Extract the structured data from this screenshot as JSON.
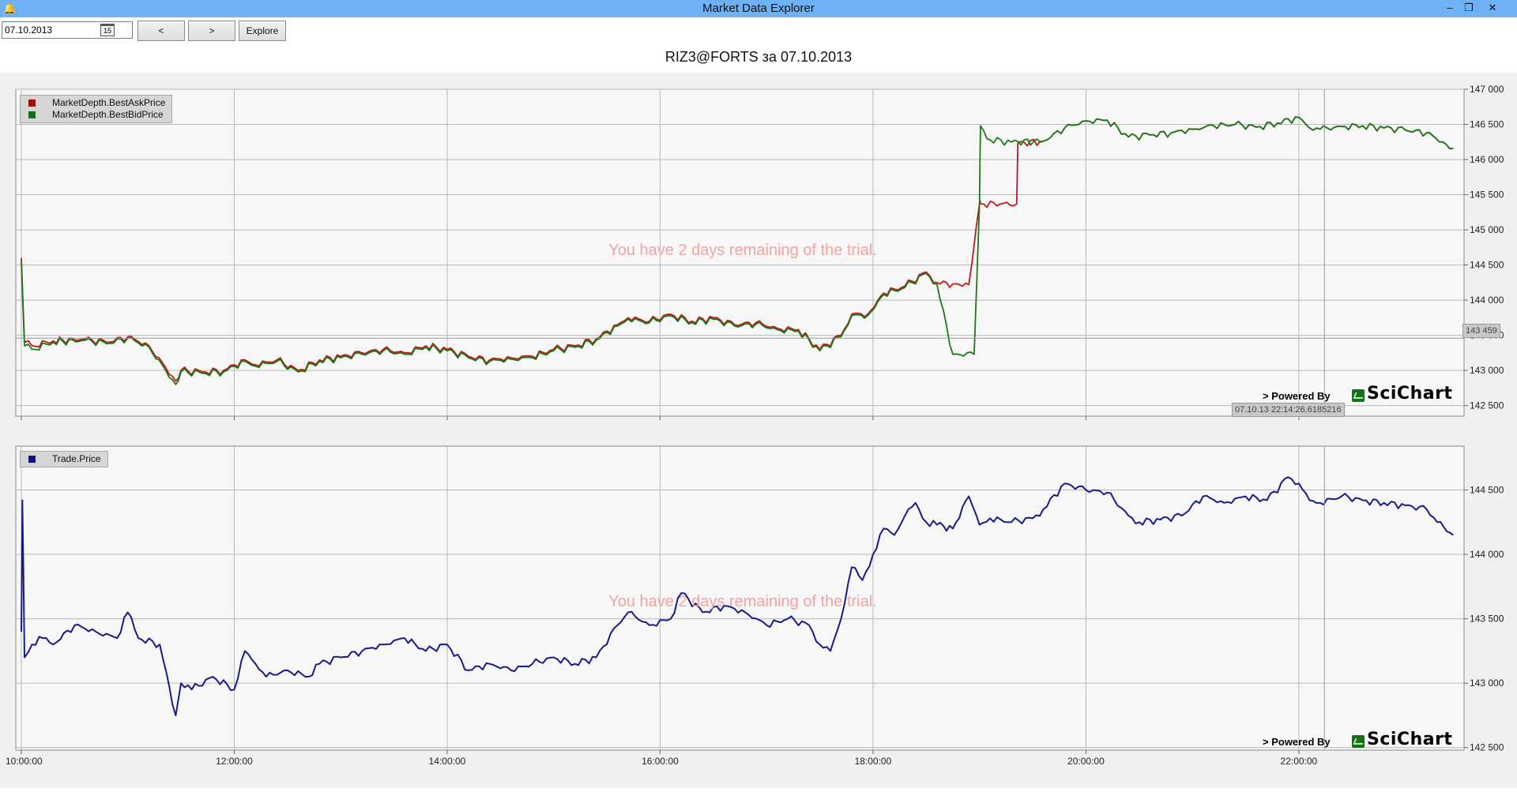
{
  "window": {
    "title": "Market Data Explorer",
    "minimize_label": "–",
    "restore_label": "❐",
    "close_label": "✕"
  },
  "toolbar": {
    "date_value": "07.10.2013",
    "calendar_label": "15",
    "prev_label": "<",
    "next_label": ">",
    "explore_label": "Explore"
  },
  "chart_title": "RIZ3@FORTS за 07.10.2013",
  "trial_watermark": "You have 2 days remaining of the trial.",
  "powered_by": "> Powered By",
  "brand": "SciChart",
  "cursor": {
    "y_value_label": "143 459",
    "x_value_label": "07.10.13 22:14:26.6185216"
  },
  "icons": {
    "app": "bell-icon",
    "calendar": "calendar-icon"
  },
  "colors": {
    "titlebar": "#6fb1f5",
    "ask": "#c01818",
    "bid": "#1a7a1a",
    "trade": "#1a1a8c"
  },
  "chart_data": [
    {
      "type": "line",
      "legend": [
        "MarketDepth.BestAskPrice",
        "MarketDepth.BestBidPrice"
      ],
      "x_tick_labels": [
        "10:00:00",
        "12:00:00",
        "14:00:00",
        "16:00:00",
        "18:00:00",
        "20:00:00",
        "22:00:00"
      ],
      "y_tick_labels": [
        "142 500",
        "143 000",
        "143 500",
        "144 000",
        "144 500",
        "145 000",
        "145 500",
        "146 000",
        "146 500",
        "147 000"
      ],
      "ylim": [
        142350,
        147000
      ],
      "xlim": [
        10.0,
        23.5
      ],
      "series": [
        {
          "name": "MarketDepth.BestAskPrice",
          "color": "#c01818",
          "x": [
            10.0,
            10.03,
            10.1,
            10.3,
            10.6,
            10.8,
            11.0,
            11.2,
            11.45,
            11.5,
            11.7,
            11.9,
            12.1,
            12.2,
            12.4,
            12.6,
            12.8,
            13.0,
            13.2,
            13.4,
            13.6,
            13.8,
            14.0,
            14.2,
            14.4,
            14.6,
            14.8,
            15.0,
            15.2,
            15.4,
            15.6,
            15.7,
            15.9,
            16.1,
            16.3,
            16.5,
            16.7,
            16.9,
            17.1,
            17.3,
            17.5,
            17.7,
            17.8,
            17.95,
            18.1,
            18.3,
            18.5,
            18.6,
            18.75,
            18.9,
            19.0,
            19.01,
            19.35,
            19.36,
            19.6,
            19.8,
            20.0,
            20.2,
            20.4,
            20.6,
            20.8,
            21.0,
            21.2,
            21.4,
            21.6,
            21.8,
            22.0,
            22.1,
            22.2,
            22.4,
            22.6,
            22.8,
            23.0,
            23.2,
            23.35,
            23.45
          ],
          "values": [
            144600,
            143400,
            143350,
            143420,
            143450,
            143400,
            143480,
            143350,
            142850,
            143000,
            142980,
            143000,
            143150,
            143080,
            143150,
            143000,
            143150,
            143200,
            143250,
            143300,
            143250,
            143350,
            143300,
            143200,
            143150,
            143180,
            143200,
            143300,
            143350,
            143450,
            143650,
            143750,
            143700,
            143800,
            143700,
            143750,
            143650,
            143680,
            143600,
            143580,
            143300,
            143500,
            143800,
            143800,
            144100,
            144200,
            144400,
            144250,
            144230,
            144220,
            145370,
            145370,
            145370,
            146230,
            146260,
            146450,
            146550,
            146560,
            146320,
            146350,
            146380,
            146430,
            146480,
            146500,
            146460,
            146520,
            146600,
            146450,
            146430,
            146470,
            146480,
            146450,
            146420,
            146380,
            146250,
            146160
          ]
        },
        {
          "name": "MarketDepth.BestBidPrice",
          "color": "#1a7a1a",
          "x": [
            10.0,
            10.03,
            10.1,
            10.3,
            10.6,
            10.8,
            11.0,
            11.2,
            11.45,
            11.5,
            11.7,
            11.9,
            12.1,
            12.2,
            12.4,
            12.6,
            12.8,
            13.0,
            13.2,
            13.4,
            13.6,
            13.8,
            14.0,
            14.2,
            14.4,
            14.6,
            14.8,
            15.0,
            15.2,
            15.4,
            15.6,
            15.7,
            15.9,
            16.1,
            16.3,
            16.5,
            16.7,
            16.9,
            17.1,
            17.3,
            17.5,
            17.7,
            17.8,
            17.95,
            18.1,
            18.3,
            18.5,
            18.6,
            18.75,
            18.95,
            19.0,
            19.01,
            19.1,
            19.3,
            19.6,
            19.8,
            20.0,
            20.2,
            20.4,
            20.6,
            20.8,
            21.0,
            21.2,
            21.4,
            21.6,
            21.8,
            22.0,
            22.1,
            22.2,
            22.4,
            22.6,
            22.8,
            23.0,
            23.2,
            23.35,
            23.45
          ],
          "values": [
            144550,
            143350,
            143300,
            143400,
            143430,
            143380,
            143460,
            143330,
            142800,
            142980,
            142960,
            142980,
            143130,
            143060,
            143130,
            142980,
            143130,
            143180,
            143230,
            143280,
            143230,
            143330,
            143280,
            143180,
            143130,
            143160,
            143180,
            143280,
            143330,
            143430,
            143630,
            143730,
            143680,
            143780,
            143680,
            143730,
            143630,
            143660,
            143580,
            143560,
            143280,
            143480,
            143780,
            143780,
            144080,
            144180,
            144380,
            144230,
            143230,
            143230,
            145370,
            146480,
            146280,
            146250,
            146260,
            146450,
            146550,
            146560,
            146320,
            146350,
            146380,
            146430,
            146480,
            146500,
            146460,
            146520,
            146600,
            146450,
            146430,
            146470,
            146480,
            146450,
            146420,
            146380,
            146250,
            146160
          ]
        }
      ]
    },
    {
      "type": "line",
      "legend": [
        "Trade.Price"
      ],
      "x_tick_labels": [
        "10:00:00",
        "12:00:00",
        "14:00:00",
        "16:00:00",
        "18:00:00",
        "20:00:00",
        "22:00:00"
      ],
      "y_tick_labels": [
        "142 500",
        "143 000",
        "143 500",
        "144 000",
        "144 500"
      ],
      "ylim": [
        142480,
        144840
      ],
      "xlim": [
        10.0,
        23.5
      ],
      "series": [
        {
          "name": "Trade.Price",
          "color": "#1a1a8c",
          "x": [
            10.0,
            10.01,
            10.03,
            10.1,
            10.2,
            10.3,
            10.5,
            10.7,
            10.9,
            11.0,
            11.1,
            11.3,
            11.45,
            11.5,
            11.6,
            11.8,
            12.0,
            12.1,
            12.2,
            12.3,
            12.5,
            12.7,
            12.8,
            13.0,
            13.2,
            13.4,
            13.6,
            13.8,
            14.0,
            14.2,
            14.4,
            14.6,
            14.8,
            15.0,
            15.2,
            15.4,
            15.6,
            15.7,
            15.9,
            16.1,
            16.2,
            16.4,
            16.6,
            16.8,
            17.0,
            17.2,
            17.4,
            17.5,
            17.6,
            17.7,
            17.8,
            17.9,
            18.0,
            18.1,
            18.2,
            18.3,
            18.4,
            18.5,
            18.6,
            18.75,
            18.9,
            19.0,
            19.1,
            19.3,
            19.5,
            19.6,
            19.8,
            20.0,
            20.2,
            20.4,
            20.5,
            20.7,
            20.9,
            21.1,
            21.3,
            21.5,
            21.7,
            21.9,
            22.0,
            22.1,
            22.2,
            22.4,
            22.6,
            22.8,
            23.0,
            23.2,
            23.3,
            23.45
          ],
          "values": [
            143400,
            144420,
            143200,
            143300,
            143350,
            143300,
            143450,
            143400,
            143350,
            143550,
            143350,
            143300,
            142750,
            143000,
            142950,
            143050,
            142950,
            143250,
            143150,
            143050,
            143100,
            143050,
            143150,
            143200,
            143250,
            143300,
            143350,
            143250,
            143300,
            143100,
            143150,
            143100,
            143150,
            143200,
            143150,
            143200,
            143450,
            143550,
            143450,
            143500,
            143700,
            143550,
            143600,
            143550,
            143450,
            143500,
            143450,
            143300,
            143250,
            143500,
            143900,
            143800,
            144000,
            144200,
            144150,
            144300,
            144400,
            144250,
            144230,
            144200,
            144450,
            144230,
            144280,
            144250,
            144280,
            144350,
            144550,
            144500,
            144480,
            144300,
            144250,
            144270,
            144300,
            144450,
            144400,
            144450,
            144420,
            144600,
            144550,
            144420,
            144400,
            144450,
            144420,
            144400,
            144380,
            144350,
            144250,
            144150
          ]
        }
      ]
    }
  ]
}
